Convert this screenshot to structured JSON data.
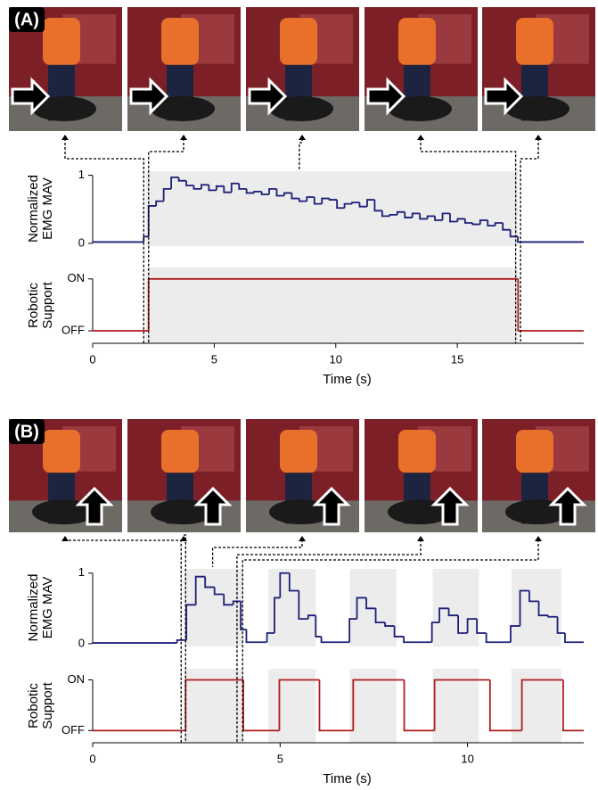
{
  "panel_labels": [
    "(A)",
    "(B)"
  ],
  "chart_data": [
    {
      "type": "step",
      "ylabel": [
        "Normalized",
        "EMG MAV"
      ],
      "color": "#1c1f78",
      "x": [
        0,
        2.1,
        2.3,
        2.61,
        2.92,
        3.23,
        3.54,
        3.85,
        4.16,
        4.47,
        4.78,
        5.09,
        5.4,
        5.71,
        6.02,
        6.33,
        6.64,
        6.95,
        7.26,
        7.57,
        7.88,
        8.19,
        8.5,
        8.81,
        9.12,
        9.43,
        9.74,
        10.05,
        10.36,
        10.67,
        10.98,
        11.29,
        11.6,
        11.91,
        12.22,
        12.53,
        12.84,
        13.15,
        13.46,
        13.77,
        14.08,
        14.39,
        14.7,
        15.01,
        15.32,
        15.63,
        15.94,
        16.25,
        16.56,
        16.87,
        17.18,
        17.49
      ],
      "values": [
        0.02,
        0.1,
        0.55,
        0.62,
        0.8,
        0.97,
        0.92,
        0.85,
        0.8,
        0.86,
        0.78,
        0.84,
        0.75,
        0.88,
        0.8,
        0.74,
        0.76,
        0.72,
        0.8,
        0.7,
        0.74,
        0.66,
        0.62,
        0.68,
        0.58,
        0.66,
        0.64,
        0.52,
        0.58,
        0.6,
        0.54,
        0.64,
        0.48,
        0.4,
        0.42,
        0.46,
        0.38,
        0.44,
        0.36,
        0.4,
        0.34,
        0.44,
        0.32,
        0.36,
        0.3,
        0.28,
        0.34,
        0.26,
        0.3,
        0.2,
        0.1,
        0.02
      ],
      "xlim": [
        0,
        20.2
      ],
      "ylim": [
        -0.04,
        1.06
      ],
      "yticks": [
        0,
        1
      ],
      "shaded": [
        [
          2.2,
          17.5
        ]
      ],
      "markers": [
        2.1,
        2.3,
        8.5,
        17.4,
        17.6
      ]
    },
    {
      "type": "step",
      "ylabel": [
        "Robotic",
        "Support"
      ],
      "color": "#b01c1c",
      "x": [
        0,
        2.3,
        17.5
      ],
      "values": [
        0,
        1,
        0
      ],
      "xlim": [
        0,
        20.2
      ],
      "ylim": [
        -0.24,
        1.22
      ],
      "yticks": [
        {
          "value": 0,
          "label": "OFF"
        },
        {
          "value": 1,
          "label": "ON"
        }
      ],
      "xticks": [
        0,
        5,
        10,
        15
      ],
      "xlabel": "Time (s)",
      "shaded": [
        [
          2.2,
          17.5
        ]
      ]
    },
    {
      "type": "step",
      "ylabel": [
        "Normalized",
        "EMG MAV"
      ],
      "color": "#1c1f78",
      "x": [
        0,
        2.25,
        2.5,
        2.75,
        3.0,
        3.25,
        3.5,
        3.75,
        3.95,
        4.1,
        4.65,
        4.85,
        5.0,
        5.25,
        5.5,
        5.75,
        5.95,
        6.1,
        6.85,
        7.05,
        7.3,
        7.55,
        7.8,
        8.05,
        8.3,
        9.05,
        9.25,
        9.5,
        9.75,
        10.0,
        10.25,
        10.5,
        11.15,
        11.4,
        11.65,
        11.9,
        12.15,
        12.4,
        12.6
      ],
      "values": [
        0.01,
        0.05,
        0.55,
        0.95,
        0.8,
        0.7,
        0.55,
        0.6,
        0.2,
        0.02,
        0.15,
        0.65,
        1.0,
        0.75,
        0.35,
        0.4,
        0.1,
        0.02,
        0.35,
        0.65,
        0.5,
        0.3,
        0.25,
        0.1,
        0.02,
        0.3,
        0.5,
        0.4,
        0.15,
        0.35,
        0.15,
        0.02,
        0.25,
        0.75,
        0.6,
        0.4,
        0.38,
        0.15,
        0.02
      ],
      "xlim": [
        0,
        13.1
      ],
      "ylim": [
        -0.04,
        1.06
      ],
      "yticks": [
        0,
        1
      ],
      "shaded": [
        [
          2.43,
          4.02
        ],
        [
          4.69,
          5.95
        ],
        [
          6.86,
          8.1
        ],
        [
          9.07,
          10.3
        ],
        [
          11.17,
          12.5
        ]
      ],
      "markers": [
        2.36,
        2.48,
        3.2,
        3.85,
        4.0
      ]
    },
    {
      "type": "step",
      "ylabel": [
        "Robotic",
        "Support"
      ],
      "color": "#b01c1c",
      "x": [
        0,
        2.48,
        4.02,
        4.98,
        6.05,
        6.95,
        8.31,
        9.12,
        10.6,
        11.45,
        12.55
      ],
      "values": [
        0,
        1,
        0,
        1,
        0,
        1,
        0,
        1,
        0,
        1,
        0
      ],
      "xlim": [
        0,
        13.1
      ],
      "ylim": [
        -0.24,
        1.22
      ],
      "yticks": [
        {
          "value": 0,
          "label": "OFF"
        },
        {
          "value": 1,
          "label": "ON"
        }
      ],
      "xticks": [
        0,
        5,
        10
      ],
      "xlabel": "Time (s)",
      "shaded": [
        [
          2.43,
          4.02
        ],
        [
          4.69,
          5.95
        ],
        [
          6.86,
          8.1
        ],
        [
          9.07,
          10.3
        ],
        [
          11.17,
          12.5
        ]
      ]
    }
  ]
}
